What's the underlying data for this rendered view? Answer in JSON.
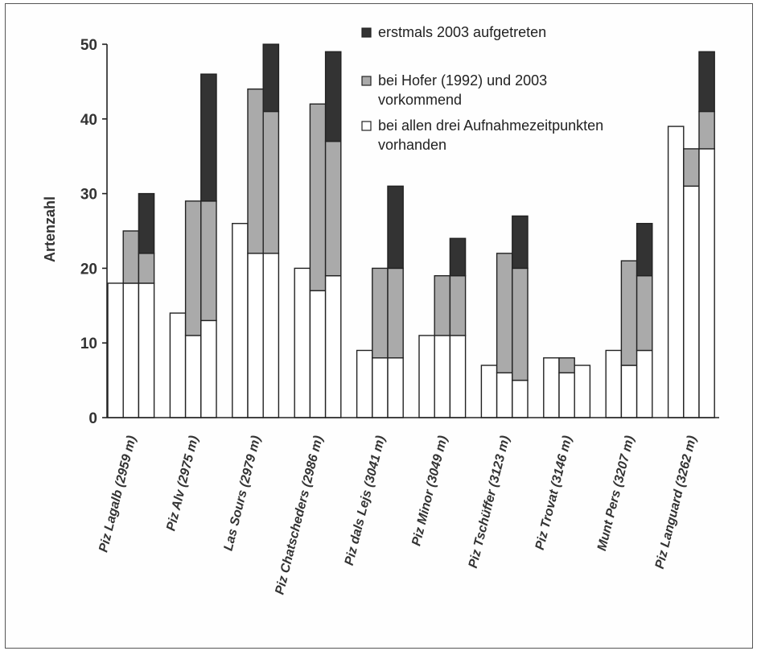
{
  "chart_data": {
    "type": "bar",
    "stacked": true,
    "bars_per_category": 3,
    "ylabel": "Artenzahl",
    "ylim": [
      0,
      50
    ],
    "yticks": [
      0,
      10,
      20,
      30,
      40,
      50
    ],
    "grid": false,
    "legend_position": "top-right",
    "categories": [
      "Piz Lagalb (2959 m)",
      "Piz Alv (2975 m)",
      "Las Sours (2979 m)",
      "Piz Chatscheders (2986 m)",
      "Piz dals Lejs (3041 m)",
      "Piz Minor (3049 m)",
      "Piz Tschüffer (3123 m)",
      "Piz Trovat (3146 m)",
      "Munt Pers (3207 m)",
      "Piz Languard (3262 m)"
    ],
    "series": [
      {
        "name": "bei allen drei Aufnahmezeitpunkten vorhanden",
        "color": "#ffffff",
        "values": [
          [
            18,
            18,
            18
          ],
          [
            14,
            11,
            13
          ],
          [
            26,
            22,
            22
          ],
          [
            20,
            17,
            19
          ],
          [
            9,
            8,
            8
          ],
          [
            11,
            11,
            11
          ],
          [
            7,
            6,
            5
          ],
          [
            8,
            6,
            7
          ],
          [
            9,
            7,
            9
          ],
          [
            39,
            31,
            36
          ]
        ]
      },
      {
        "name": "bei Hofer (1992) und 2003 vorkommend",
        "color": "#aaaaaa",
        "values": [
          [
            0,
            7,
            4
          ],
          [
            0,
            18,
            16
          ],
          [
            0,
            22,
            19
          ],
          [
            0,
            25,
            18
          ],
          [
            0,
            12,
            12
          ],
          [
            0,
            8,
            8
          ],
          [
            0,
            16,
            15
          ],
          [
            0,
            2,
            0
          ],
          [
            0,
            14,
            10
          ],
          [
            0,
            5,
            5
          ]
        ]
      },
      {
        "name": "erstmals 2003 aufgetreten",
        "color": "#333333",
        "values": [
          [
            0,
            0,
            8
          ],
          [
            0,
            0,
            17
          ],
          [
            0,
            0,
            9
          ],
          [
            0,
            0,
            12
          ],
          [
            0,
            0,
            11
          ],
          [
            0,
            0,
            5
          ],
          [
            0,
            0,
            7
          ],
          [
            0,
            0,
            0
          ],
          [
            0,
            0,
            7
          ],
          [
            0,
            0,
            8
          ]
        ]
      }
    ],
    "legend": {
      "entries": [
        {
          "series": 2,
          "lines": [
            "erstmals 2003 aufgetreten"
          ]
        },
        {
          "series": 1,
          "lines": [
            "bei Hofer (1992) und 2003",
            "vorkommend"
          ]
        },
        {
          "series": 0,
          "lines": [
            "bei allen drei Aufnahmezeitpunkten",
            "vorhanden"
          ]
        }
      ]
    }
  }
}
